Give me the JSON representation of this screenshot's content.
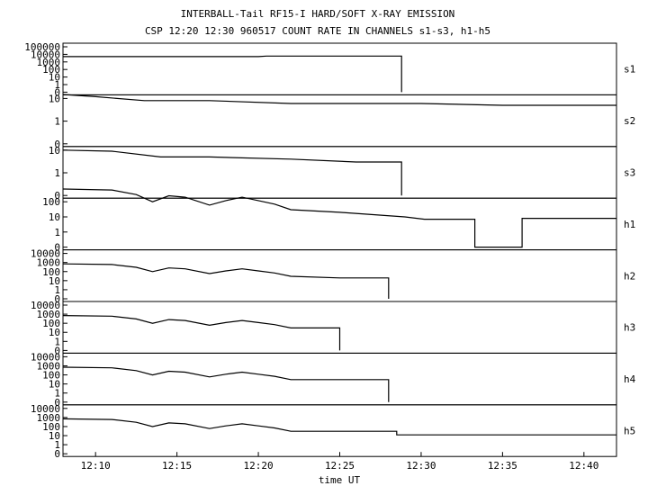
{
  "title": "INTERBALL-Tail RF15-I HARD/SOFT X-RAY EMISSION",
  "subtitle": "CSP 12:20 12:30 960517  COUNT RATE IN CHANNELS s1-s3, h1-h5",
  "chart_data": {
    "type": "line",
    "title": "INTERBALL-Tail RF15-I HARD/SOFT X-RAY EMISSION",
    "subtitle": "CSP 12:20 12:30 960517  COUNT RATE IN CHANNELS s1-s3, h1-h5",
    "xlabel": "time UT",
    "x_unit": "minutes",
    "xlim": [
      "12:08",
      "12:42"
    ],
    "x_ticks": [
      "12:10",
      "12:15",
      "12:20",
      "12:25",
      "12:30",
      "12:35",
      "12:40"
    ],
    "y_scale": "log",
    "grid": false,
    "panels": [
      {
        "name": "s1",
        "y_ticks": [
          "100000",
          "10000",
          "1000",
          "100",
          "10",
          "1",
          "0"
        ],
        "series": [
          {
            "time": "12:08",
            "value": 5000
          },
          {
            "time": "12:20",
            "value": 5000
          },
          {
            "time": "12:20.5",
            "value": 6000
          },
          {
            "time": "12:28.8",
            "value": 6000
          },
          {
            "time": "12:28.8",
            "value": 0
          }
        ]
      },
      {
        "name": "s2",
        "y_ticks": [
          "10",
          "1",
          "0"
        ],
        "series": [
          {
            "time": "12:08",
            "value": 15
          },
          {
            "time": "12:10",
            "value": 12
          },
          {
            "time": "12:13",
            "value": 8
          },
          {
            "time": "12:17",
            "value": 8
          },
          {
            "time": "12:22",
            "value": 6
          },
          {
            "time": "12:27",
            "value": 6
          },
          {
            "time": "12:30",
            "value": 6
          },
          {
            "time": "12:35",
            "value": 5
          },
          {
            "time": "12:38",
            "value": 5
          },
          {
            "time": "12:42",
            "value": 5
          }
        ]
      },
      {
        "name": "s3",
        "y_ticks": [
          "10",
          "1",
          "0"
        ],
        "series": [
          {
            "time": "12:08",
            "value": 10
          },
          {
            "time": "12:11",
            "value": 9
          },
          {
            "time": "12:14",
            "value": 5
          },
          {
            "time": "12:17",
            "value": 5
          },
          {
            "time": "12:22",
            "value": 4
          },
          {
            "time": "12:26",
            "value": 3
          },
          {
            "time": "12:28.8",
            "value": 3
          },
          {
            "time": "12:28.8",
            "value": 0
          }
        ]
      },
      {
        "name": "h1",
        "y_ticks": [
          "100",
          "10",
          "1",
          "0"
        ],
        "series": [
          {
            "time": "12:08",
            "value": 700
          },
          {
            "time": "12:11",
            "value": 600
          },
          {
            "time": "12:12.5",
            "value": 300
          },
          {
            "time": "12:13.5",
            "value": 100
          },
          {
            "time": "12:14.5",
            "value": 250
          },
          {
            "time": "12:15.5",
            "value": 200
          },
          {
            "time": "12:17",
            "value": 60
          },
          {
            "time": "12:18",
            "value": 120
          },
          {
            "time": "12:19",
            "value": 200
          },
          {
            "time": "12:20",
            "value": 120
          },
          {
            "time": "12:21",
            "value": 70
          },
          {
            "time": "12:22",
            "value": 30
          },
          {
            "time": "12:25",
            "value": 20
          },
          {
            "time": "12:29",
            "value": 10
          },
          {
            "time": "12:30.2",
            "value": 7
          },
          {
            "time": "12:33.3",
            "value": 7
          },
          {
            "time": "12:33.3",
            "value": 0
          },
          {
            "time": "12:36.2",
            "value": 0
          },
          {
            "time": "12:36.2",
            "value": 8
          },
          {
            "time": "12:42",
            "value": 8
          }
        ]
      },
      {
        "name": "h2",
        "y_ticks": [
          "10000",
          "1000",
          "100",
          "10",
          "1",
          "0"
        ],
        "series": [
          {
            "time": "12:08",
            "value": 700
          },
          {
            "time": "12:11",
            "value": 600
          },
          {
            "time": "12:12.5",
            "value": 300
          },
          {
            "time": "12:13.5",
            "value": 100
          },
          {
            "time": "12:14.5",
            "value": 250
          },
          {
            "time": "12:15.5",
            "value": 200
          },
          {
            "time": "12:17",
            "value": 60
          },
          {
            "time": "12:18",
            "value": 120
          },
          {
            "time": "12:19",
            "value": 200
          },
          {
            "time": "12:20",
            "value": 120
          },
          {
            "time": "12:21",
            "value": 70
          },
          {
            "time": "12:22",
            "value": 30
          },
          {
            "time": "12:25",
            "value": 20
          },
          {
            "time": "12:28",
            "value": 20
          },
          {
            "time": "12:28",
            "value": 0
          }
        ]
      },
      {
        "name": "h3",
        "y_ticks": [
          "10000",
          "1000",
          "100",
          "10",
          "1",
          "0"
        ],
        "series": [
          {
            "time": "12:08",
            "value": 700
          },
          {
            "time": "12:11",
            "value": 600
          },
          {
            "time": "12:12.5",
            "value": 300
          },
          {
            "time": "12:13.5",
            "value": 100
          },
          {
            "time": "12:14.5",
            "value": 250
          },
          {
            "time": "12:15.5",
            "value": 200
          },
          {
            "time": "12:17",
            "value": 60
          },
          {
            "time": "12:18",
            "value": 120
          },
          {
            "time": "12:19",
            "value": 200
          },
          {
            "time": "12:20",
            "value": 120
          },
          {
            "time": "12:21",
            "value": 70
          },
          {
            "time": "12:22",
            "value": 30
          },
          {
            "time": "12:25",
            "value": 30
          },
          {
            "time": "12:25",
            "value": 0
          }
        ]
      },
      {
        "name": "h4",
        "y_ticks": [
          "10000",
          "1000",
          "100",
          "10",
          "1",
          "0"
        ],
        "series": [
          {
            "time": "12:08",
            "value": 700
          },
          {
            "time": "12:11",
            "value": 600
          },
          {
            "time": "12:12.5",
            "value": 300
          },
          {
            "time": "12:13.5",
            "value": 100
          },
          {
            "time": "12:14.5",
            "value": 250
          },
          {
            "time": "12:15.5",
            "value": 200
          },
          {
            "time": "12:17",
            "value": 60
          },
          {
            "time": "12:18",
            "value": 120
          },
          {
            "time": "12:19",
            "value": 200
          },
          {
            "time": "12:20",
            "value": 120
          },
          {
            "time": "12:21",
            "value": 70
          },
          {
            "time": "12:22",
            "value": 30
          },
          {
            "time": "12:25",
            "value": 30
          },
          {
            "time": "12:28",
            "value": 30
          },
          {
            "time": "12:28",
            "value": 0
          }
        ]
      },
      {
        "name": "h5",
        "y_ticks": [
          "10000",
          "1000",
          "100",
          "10",
          "1",
          "0"
        ],
        "series": [
          {
            "time": "12:08",
            "value": 700
          },
          {
            "time": "12:11",
            "value": 600
          },
          {
            "time": "12:12.5",
            "value": 300
          },
          {
            "time": "12:13.5",
            "value": 100
          },
          {
            "time": "12:14.5",
            "value": 250
          },
          {
            "time": "12:15.5",
            "value": 200
          },
          {
            "time": "12:17",
            "value": 60
          },
          {
            "time": "12:18",
            "value": 120
          },
          {
            "time": "12:19",
            "value": 200
          },
          {
            "time": "12:20",
            "value": 120
          },
          {
            "time": "12:21",
            "value": 70
          },
          {
            "time": "12:22",
            "value": 30
          },
          {
            "time": "12:25",
            "value": 30
          },
          {
            "time": "12:28.5",
            "value": 30
          },
          {
            "time": "12:28.5",
            "value": 12
          },
          {
            "time": "12:42",
            "value": 12
          }
        ]
      }
    ]
  }
}
